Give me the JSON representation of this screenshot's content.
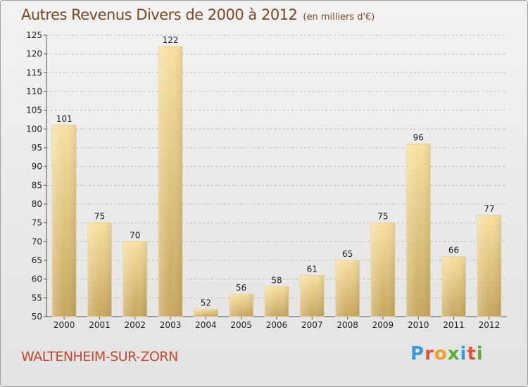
{
  "title": "Autres Revenus Divers de 2000 à 2012",
  "unit": "(en milliers d'€)",
  "city": "WALTENHEIM-SUR-ZORN",
  "brand": {
    "text": "Proxiti",
    "letter_colors": [
      "#3a9ad9",
      "#e0523a",
      "#f0a020",
      "#5bb03a",
      "#3a9ad9",
      "#e0523a",
      "#5bb03a"
    ]
  },
  "colors": {
    "title": "#7a4a20",
    "city": "#c2492e",
    "bar_light": "#f5dc9a",
    "bar_dark": "#c9a860",
    "background": "#eaeaea"
  },
  "chart_data": {
    "type": "bar",
    "categories": [
      "2000",
      "2001",
      "2002",
      "2003",
      "2004",
      "2005",
      "2006",
      "2007",
      "2008",
      "2009",
      "2010",
      "2011",
      "2012"
    ],
    "values": [
      101,
      75,
      70,
      122,
      52,
      56,
      58,
      61,
      65,
      75,
      96,
      66,
      77
    ],
    "ylim": [
      50,
      125
    ],
    "yticks": [
      50,
      55,
      60,
      65,
      70,
      75,
      80,
      85,
      90,
      95,
      100,
      105,
      110,
      115,
      120,
      125
    ],
    "grid": "horizontal dashed",
    "title": "Autres Revenus Divers de 2000 à 2012",
    "xlabel": "",
    "ylabel": ""
  }
}
